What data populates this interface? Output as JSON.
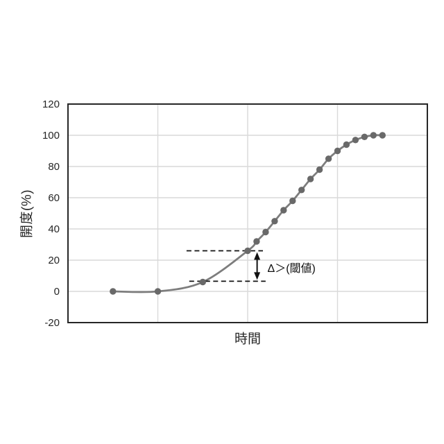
{
  "chart_data": {
    "type": "line",
    "title": "",
    "xlabel": "時間",
    "ylabel": "開度(%)",
    "xlim": [
      -5,
      35
    ],
    "ylim": [
      -20,
      120
    ],
    "yticks": [
      -20,
      0,
      20,
      40,
      60,
      80,
      100,
      120
    ],
    "x_gridlines": [
      5,
      15,
      25
    ],
    "grid": true,
    "legend": "none",
    "series": [
      {
        "name": "開度",
        "marker": "circle",
        "x": [
          0,
          5,
          10,
          15,
          16,
          17,
          18,
          19,
          20,
          21,
          22,
          23,
          24,
          25,
          26,
          27,
          28,
          29,
          30
        ],
        "y": [
          0,
          0,
          6,
          26,
          32,
          38,
          45,
          52,
          58,
          65,
          72,
          78,
          85,
          90,
          94,
          97,
          99,
          100,
          100
        ]
      }
    ],
    "annotation": {
      "label": "Δ＞(閾値)",
      "upper_dash": {
        "y": 26,
        "x1": 8.2,
        "x2": 16.7
      },
      "lower_dash": {
        "y": 6.5,
        "x1": 8.5,
        "x2": 17.0
      },
      "arrow_x": 16.05,
      "label_pos": {
        "x": 17.2,
        "y": 15.5
      }
    },
    "colors": {
      "line": "#7d7d7d",
      "marker": "#696969",
      "gridline": "#d9d9d9",
      "border": "#262626",
      "annotation": "#111111",
      "tick_label": "#262626"
    }
  }
}
